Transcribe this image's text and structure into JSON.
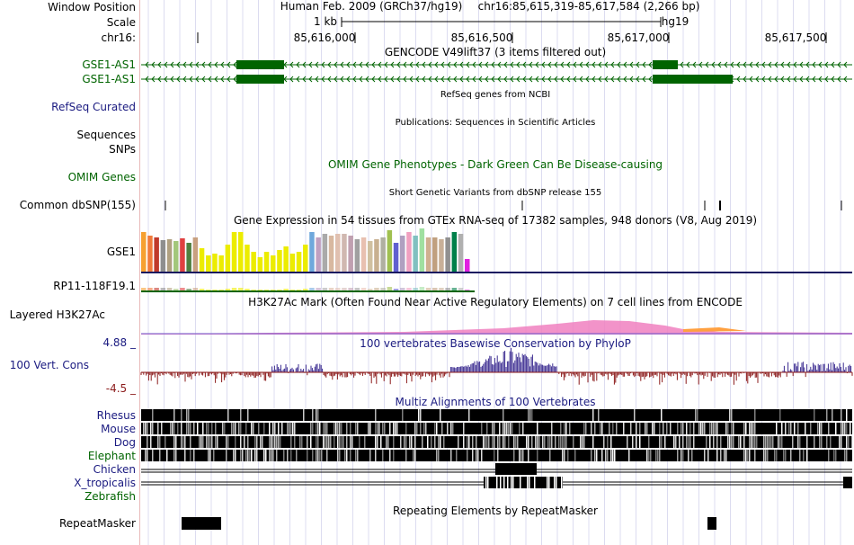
{
  "colors": {
    "gene": "#006400",
    "navy": "#1a1a80",
    "purple": "#3a2a90",
    "grid": "#d8d8f0",
    "rule": "#000000"
  },
  "header": {
    "window_position_label": "Window Position",
    "scale_label": "Scale",
    "chrom_label": "chr16:",
    "assembly": "Human Feb. 2009 (GRCh37/hg19)",
    "position": "chr16:85,615,319-85,617,584 (2,266 bp)",
    "scale_text": "1 kb",
    "scale_assembly": "hg19",
    "ticks": [
      "85,616,000",
      "85,616,500",
      "85,617,000",
      "85,617,500"
    ]
  },
  "tracks": {
    "gencode": {
      "title": "GENCODE V49lift37 (3 items filtered out)",
      "items": [
        "GSE1-AS1",
        "GSE1-AS1"
      ]
    },
    "refseq": {
      "title": "RefSeq genes from NCBI",
      "label": "RefSeq Curated"
    },
    "publications": {
      "title": "Publications: Sequences in Scientific Articles",
      "label1": "Sequences",
      "label2": "SNPs"
    },
    "omim": {
      "title": "OMIM Gene Phenotypes - Dark Green Can Be Disease-causing",
      "label": "OMIM Genes"
    },
    "dbsnp": {
      "title": "Short Genetic Variants from dbSNP release 155",
      "label": "Common dbSNP(155)"
    },
    "gtex": {
      "title": "Gene Expression in 54 tissues from GTEx RNA-seq of 17382 samples, 948 donors (V8, Aug 2019)",
      "genes": [
        "GSE1",
        "RP11-118F19.1"
      ]
    },
    "h3k27ac": {
      "title": "H3K27Ac Mark (Often Found Near Active Regulatory Elements) on 7 cell lines from ENCODE",
      "label": "Layered H3K27Ac"
    },
    "phylop": {
      "title": "100 vertebrates Basewise Conservation by PhyloP",
      "label": "100 Vert. Cons",
      "max": "4.88 _",
      "min": "-4.5 _"
    },
    "multiz": {
      "title": "Multiz Alignments of 100 Vertebrates",
      "species": [
        "Rhesus",
        "Mouse",
        "Dog",
        "Elephant",
        "Chicken",
        "X_tropicalis",
        "Zebrafish"
      ]
    },
    "repeatmasker": {
      "title": "Repeating Elements by RepeatMasker",
      "label": "RepeatMasker"
    }
  }
}
